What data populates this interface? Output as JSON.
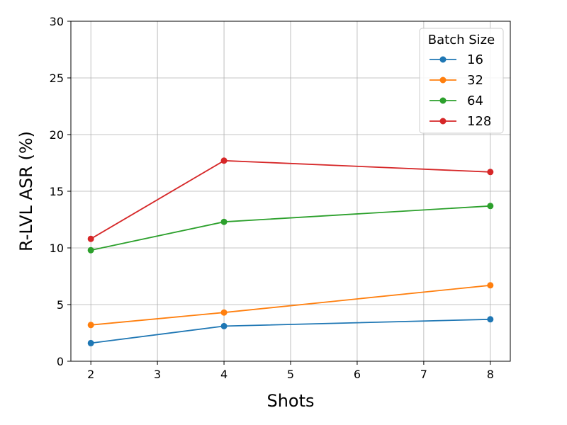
{
  "chart_data": {
    "type": "line",
    "x": [
      2,
      4,
      8
    ],
    "xlabel": "Shots",
    "ylabel": "R-LVL ASR (%)",
    "xlim": [
      1.7,
      8.3
    ],
    "ylim": [
      0,
      30
    ],
    "xticks": [
      2,
      3,
      4,
      5,
      6,
      7,
      8
    ],
    "yticks": [
      0,
      5,
      10,
      15,
      20,
      25,
      30
    ],
    "grid": true,
    "legend": {
      "title": "Batch Size",
      "placement": "top-right"
    },
    "series": [
      {
        "name": "16",
        "color": "#1f77b4",
        "values": [
          1.6,
          3.1,
          3.7
        ]
      },
      {
        "name": "32",
        "color": "#ff7f0e",
        "values": [
          3.2,
          4.3,
          6.7
        ]
      },
      {
        "name": "64",
        "color": "#2ca02c",
        "values": [
          9.8,
          12.3,
          13.7
        ]
      },
      {
        "name": "128",
        "color": "#d62728",
        "values": [
          10.8,
          17.7,
          16.7
        ]
      }
    ]
  }
}
